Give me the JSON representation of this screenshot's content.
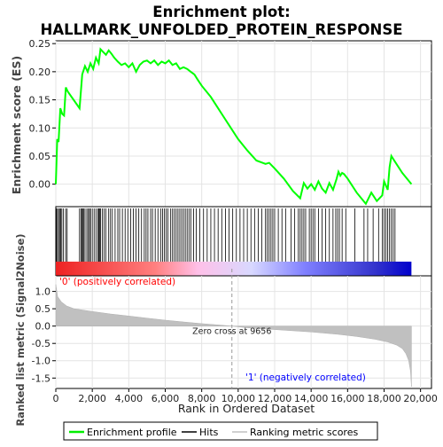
{
  "chart_data": {
    "type": "line",
    "title": "Enrichment plot:\nHALLMARK_UNFOLDED_PROTEIN_RESPONSE",
    "title_lines": [
      "Enrichment plot:",
      "HALLMARK_UNFOLDED_PROTEIN_RESPONSE"
    ],
    "xlabel": "Rank in Ordered Dataset",
    "x_ticks": [
      0,
      2000,
      4000,
      6000,
      8000,
      10000,
      12000,
      14000,
      16000,
      18000,
      20000
    ],
    "x_tick_labels": [
      "0",
      "2,000",
      "4,000",
      "6,000",
      "8,000",
      "10,000",
      "12,000",
      "14,000",
      "16,000",
      "18,000",
      "20,000"
    ],
    "xlim": [
      0,
      20600
    ],
    "top_panel": {
      "ylabel": "Enrichment score (ES)",
      "ylim": [
        -0.04,
        0.255
      ],
      "y_ticks": [
        0.0,
        0.05,
        0.1,
        0.15,
        0.2,
        0.25
      ],
      "y_tick_labels": [
        "0.00",
        "0.05",
        "0.10",
        "0.15",
        "0.20",
        "0.25"
      ],
      "series": [
        {
          "name": "Enrichment profile",
          "color": "#00ff00",
          "x": [
            0,
            80,
            150,
            250,
            350,
            450,
            550,
            650,
            1300,
            1450,
            1600,
            1750,
            1900,
            2050,
            2200,
            2350,
            2450,
            2600,
            2750,
            2900,
            3050,
            3200,
            3400,
            3600,
            3800,
            4000,
            4200,
            4400,
            4600,
            4800,
            5000,
            5200,
            5400,
            5600,
            5800,
            6000,
            6200,
            6400,
            6600,
            6800,
            7000,
            7200,
            7400,
            7600,
            7800,
            8000,
            8500,
            9000,
            9500,
            10000,
            10500,
            11000,
            11500,
            11700,
            12000,
            12500,
            13000,
            13400,
            13600,
            13800,
            14000,
            14200,
            14400,
            14600,
            14800,
            15000,
            15200,
            15400,
            15500,
            15600,
            15700,
            15800,
            16000,
            16500,
            17000,
            17300,
            17600,
            17900,
            18000,
            18200,
            18300,
            18400,
            18600,
            19000,
            19500
          ],
          "y": [
            0.0,
            0.08,
            0.075,
            0.135,
            0.125,
            0.122,
            0.172,
            0.165,
            0.135,
            0.195,
            0.21,
            0.2,
            0.215,
            0.205,
            0.225,
            0.215,
            0.24,
            0.235,
            0.23,
            0.238,
            0.232,
            0.225,
            0.218,
            0.212,
            0.215,
            0.208,
            0.215,
            0.2,
            0.212,
            0.218,
            0.22,
            0.215,
            0.22,
            0.212,
            0.218,
            0.215,
            0.22,
            0.212,
            0.215,
            0.205,
            0.208,
            0.205,
            0.2,
            0.195,
            0.185,
            0.175,
            0.155,
            0.13,
            0.105,
            0.08,
            0.06,
            0.042,
            0.036,
            0.038,
            0.028,
            0.01,
            -0.012,
            -0.025,
            0.002,
            -0.008,
            0.0,
            -0.01,
            0.005,
            -0.008,
            -0.015,
            0.002,
            -0.01,
            0.01,
            0.022,
            0.015,
            0.02,
            0.018,
            0.01,
            -0.015,
            -0.035,
            -0.015,
            -0.03,
            -0.02,
            0.005,
            -0.01,
            0.03,
            0.05,
            0.04,
            0.02,
            0.0
          ]
        }
      ]
    },
    "hits_panel": {
      "name": "Hits",
      "color": "#000000",
      "hit_ranks": [
        30,
        90,
        150,
        210,
        270,
        330,
        420,
        540,
        620,
        1300,
        1380,
        1420,
        1480,
        1520,
        1600,
        1700,
        1780,
        1850,
        1900,
        2000,
        2100,
        2200,
        2300,
        2350,
        2400,
        2450,
        2550,
        2650,
        2750,
        2900,
        3000,
        3100,
        3250,
        3400,
        3500,
        3650,
        3800,
        3950,
        4100,
        4250,
        4400,
        4550,
        4700,
        4850,
        4950,
        5050,
        5200,
        5300,
        5450,
        5600,
        5750,
        5850,
        5950,
        6050,
        6150,
        6300,
        6400,
        6500,
        6600,
        6700,
        6800,
        6900,
        7000,
        7100,
        7200,
        7300,
        7400,
        7550,
        7700,
        7900,
        8100,
        8300,
        8500,
        8700,
        8900,
        9100,
        9300,
        9500,
        9700,
        9900,
        10100,
        10300,
        10500,
        10700,
        10900,
        11100,
        11300,
        11500,
        11600,
        11700,
        11800,
        11900,
        12000,
        12200,
        12400,
        12600,
        12900,
        13100,
        13300,
        13400,
        13500,
        13600,
        13700,
        13900,
        14000,
        14100,
        14200,
        14400,
        14600,
        14800,
        15000,
        15200,
        15350,
        15450,
        15550,
        15700,
        15900,
        16400,
        16900,
        17100,
        17400,
        17700,
        17900,
        18000,
        18100,
        18200,
        18300,
        18400,
        18500,
        18600
      ]
    },
    "rank_bar": {
      "gradient": [
        "#ee2222",
        "#ff8080",
        "#ffc0e8",
        "#d8d8ff",
        "#8080ff",
        "#3333cc",
        "#0000cc"
      ],
      "gradient_stops": [
        0.0,
        0.28,
        0.4,
        0.55,
        0.7,
        0.9,
        1.0
      ]
    },
    "bottom_panel": {
      "ylabel": "Ranked list metric (Signal2Noise)",
      "ylim": [
        -1.8,
        1.45
      ],
      "y_ticks": [
        1.0,
        0.5,
        0.0,
        -0.5,
        -1.0,
        -1.5
      ],
      "y_tick_labels": [
        "1.0",
        "0.5",
        "0.0",
        "-0.5",
        "-1.0",
        "-1.5"
      ],
      "fill_color": "#c0c0c0",
      "curve_x": [
        0,
        100,
        300,
        600,
        1000,
        2000,
        3000,
        4000,
        5000,
        6000,
        7000,
        8000,
        9000,
        9656,
        10500,
        12000,
        14000,
        15500,
        16500,
        17500,
        18200,
        18700,
        19000,
        19200,
        19350,
        19450,
        19500
      ],
      "curve_y": [
        1.2,
        0.85,
        0.7,
        0.58,
        0.5,
        0.42,
        0.35,
        0.29,
        0.23,
        0.17,
        0.12,
        0.07,
        0.03,
        0.0,
        -0.05,
        -0.1,
        -0.17,
        -0.24,
        -0.3,
        -0.38,
        -0.46,
        -0.55,
        -0.65,
        -0.8,
        -1.0,
        -1.3,
        -1.75
      ],
      "zero_cross_label": "Zero cross at 9656",
      "zero_cross_rank": 9656,
      "pos_label": "'0' (positively correlated)",
      "neg_label": "'1' (negatively correlated)",
      "pos_label_color": "#ff0000",
      "neg_label_color": "#0000ff"
    },
    "legend": {
      "placement": "bottom",
      "items": [
        {
          "label": "Enrichment profile",
          "color": "#00ff00",
          "kind": "line"
        },
        {
          "label": "Hits",
          "color": "#000000",
          "kind": "line"
        },
        {
          "label": "Ranking metric scores",
          "color": "#c0c0c0",
          "kind": "line"
        }
      ]
    }
  }
}
